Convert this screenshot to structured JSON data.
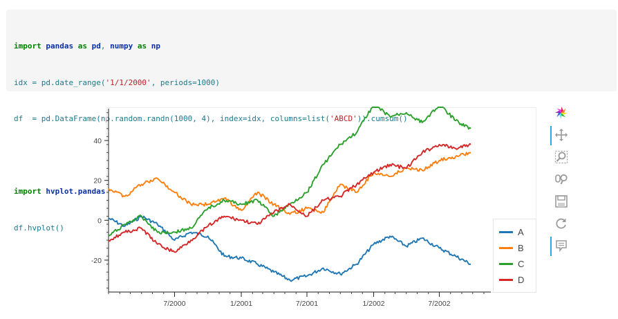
{
  "code": {
    "lines": [
      [
        {
          "t": "import",
          "c": "kw"
        },
        {
          "t": " ",
          "c": "plain"
        },
        {
          "t": "pandas",
          "c": "mod"
        },
        {
          "t": " ",
          "c": "plain"
        },
        {
          "t": "as",
          "c": "kw"
        },
        {
          "t": " ",
          "c": "plain"
        },
        {
          "t": "pd",
          "c": "mod"
        },
        {
          "t": ", ",
          "c": "plain"
        },
        {
          "t": "numpy",
          "c": "mod"
        },
        {
          "t": " ",
          "c": "plain"
        },
        {
          "t": "as",
          "c": "kw"
        },
        {
          "t": " ",
          "c": "plain"
        },
        {
          "t": "np",
          "c": "mod"
        }
      ],
      [
        {
          "t": "idx = pd.date_range(",
          "c": "plain"
        },
        {
          "t": "'1/1/2000'",
          "c": "str"
        },
        {
          "t": ", periods=1000)",
          "c": "plain"
        }
      ],
      [
        {
          "t": "df  = pd.DataFrame(np.random.randn(1000, 4), index=idx, columns=list(",
          "c": "plain"
        },
        {
          "t": "'ABCD'",
          "c": "str"
        },
        {
          "t": ")).cumsum()",
          "c": "plain"
        }
      ],
      [],
      [
        {
          "t": "import",
          "c": "kw"
        },
        {
          "t": " ",
          "c": "plain"
        },
        {
          "t": "hvplot.pandas",
          "c": "mod"
        }
      ],
      [
        {
          "t": "df.hvplot()",
          "c": "plain"
        }
      ]
    ]
  },
  "chart_data": {
    "type": "line",
    "x": [
      "2000-01-01",
      "2000-02-15",
      "2000-04-01",
      "2000-05-15",
      "2000-07-01",
      "2000-08-15",
      "2000-10-01",
      "2000-11-15",
      "2001-01-01",
      "2001-02-15",
      "2001-04-01",
      "2001-05-15",
      "2001-07-01",
      "2001-08-15",
      "2001-10-01",
      "2001-11-15",
      "2002-01-01",
      "2002-02-15",
      "2002-04-01",
      "2002-05-15",
      "2002-07-01",
      "2002-08-15",
      "2002-09-26"
    ],
    "series": [
      {
        "name": "A",
        "color": "#1f77b4",
        "values": [
          1,
          -3,
          2,
          -2,
          -10,
          -6,
          -8,
          -18,
          -19,
          -22,
          -26,
          -30,
          -28,
          -24,
          -27,
          -22,
          -12,
          -8,
          -13,
          -9,
          -14,
          -18,
          -22
        ]
      },
      {
        "name": "B",
        "color": "#ff7f0e",
        "values": [
          16,
          12,
          18,
          21,
          14,
          8,
          8,
          11,
          5,
          14,
          8,
          3,
          6,
          4,
          18,
          14,
          24,
          22,
          26,
          25,
          30,
          32,
          34
        ]
      },
      {
        "name": "C",
        "color": "#2ca02c",
        "values": [
          -8,
          -2,
          2,
          -6,
          -6,
          -4,
          6,
          10,
          8,
          10,
          2,
          8,
          14,
          28,
          38,
          44,
          58,
          52,
          54,
          49,
          58,
          50,
          46
        ]
      },
      {
        "name": "D",
        "color": "#d62728",
        "values": [
          -10,
          -6,
          -4,
          -12,
          -16,
          -10,
          -3,
          2,
          0,
          -2,
          4,
          8,
          2,
          10,
          12,
          18,
          24,
          28,
          26,
          34,
          38,
          36,
          38
        ]
      }
    ],
    "xticks": [
      "7/2000",
      "1/2001",
      "7/2001",
      "1/2002",
      "7/2002"
    ],
    "xtick_dates": [
      "2000-07-01",
      "2001-01-01",
      "2001-07-01",
      "2002-01-01",
      "2002-07-01"
    ],
    "yticks": [
      40,
      20,
      0,
      -20
    ],
    "xlim": [
      "2000-01-01",
      "2002-11-20"
    ],
    "ylim": [
      -36,
      56
    ],
    "legend_placement": "bottom-right",
    "grid": false,
    "xlabel": "",
    "ylabel": "",
    "title": ""
  },
  "toolbar": {
    "tools": [
      {
        "icon": "bokeh-logo-icon",
        "name": "bokeh-logo",
        "active": false
      },
      {
        "icon": "pan-icon",
        "name": "pan-tool",
        "active": true
      },
      {
        "icon": "box-zoom-icon",
        "name": "box-zoom-tool",
        "active": false
      },
      {
        "icon": "wheel-zoom-icon",
        "name": "wheel-zoom-tool",
        "active": false
      },
      {
        "icon": "save-icon",
        "name": "save-tool",
        "active": false
      },
      {
        "icon": "reset-icon",
        "name": "reset-tool",
        "active": false
      },
      {
        "icon": "hover-icon",
        "name": "hover-tool",
        "active": true
      }
    ]
  }
}
